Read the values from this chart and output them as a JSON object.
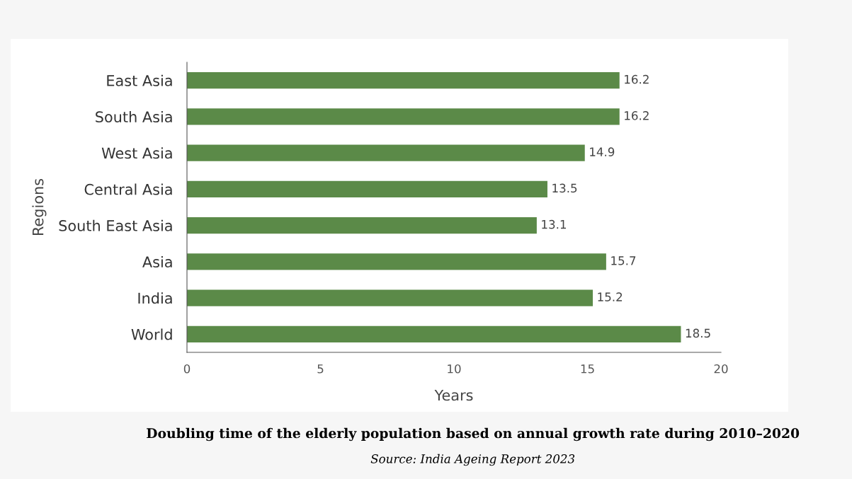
{
  "chart_data": {
    "type": "bar",
    "orientation": "horizontal",
    "title": "Doubling time of the elderly population based on annual growth rate during 2010–2020",
    "annotations": [
      "Source: India Ageing Report 2023"
    ],
    "xlabel": "Years",
    "ylabel": "Regions",
    "categories": [
      "East Asia",
      "South Asia",
      "West Asia",
      "Central Asia",
      "South East Asia",
      "Asia",
      "India",
      "World"
    ],
    "values": [
      16.2,
      16.2,
      14.9,
      13.5,
      13.1,
      15.7,
      15.2,
      18.5
    ],
    "color": "#5b8a48",
    "xlim": [
      0,
      20
    ],
    "xticks": [
      0,
      5,
      10,
      15,
      20
    ],
    "data_labels": true,
    "grid": false
  }
}
